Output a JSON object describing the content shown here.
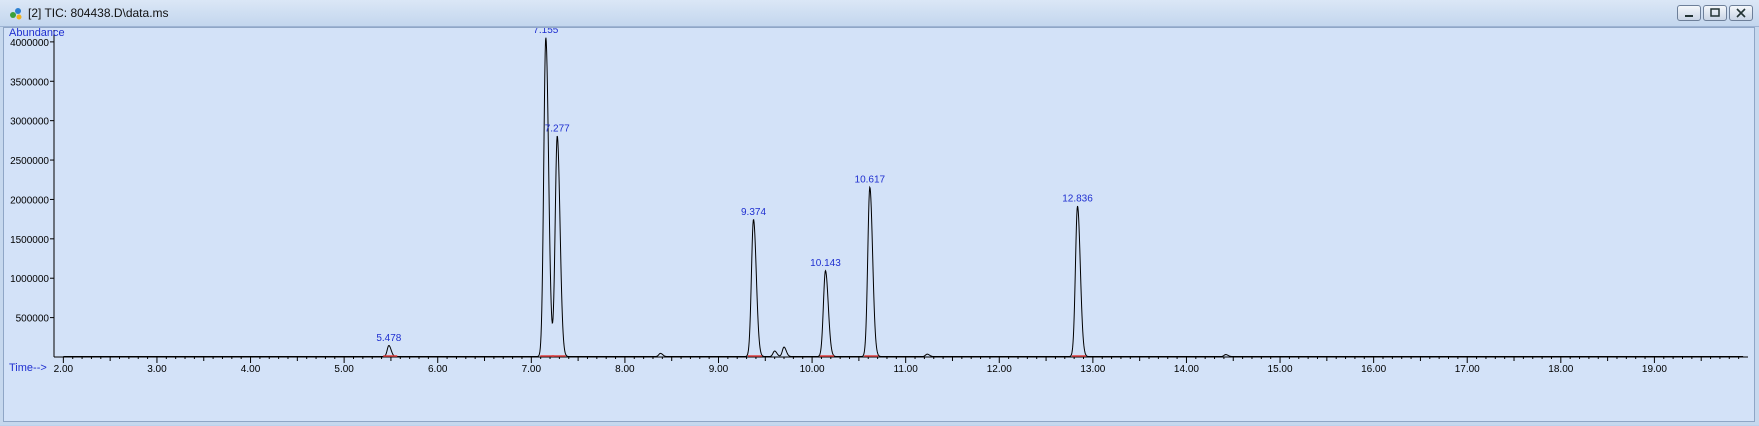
{
  "window": {
    "title": "[2] TIC: 804438.D\\data.ms",
    "icons": [
      "chromatogram-app-icon",
      "minimize-icon",
      "restore-icon",
      "close-icon"
    ]
  },
  "chart_data": {
    "type": "line",
    "title": "",
    "ylabel": "Abundance",
    "xlabel": "Time-->",
    "xlim": [
      1.9,
      20.0
    ],
    "ylim": [
      0,
      4100000
    ],
    "x_ticks": [
      "2.00",
      "3.00",
      "4.00",
      "5.00",
      "6.00",
      "7.00",
      "8.00",
      "9.00",
      "10.00",
      "11.00",
      "12.00",
      "13.00",
      "14.00",
      "15.00",
      "16.00",
      "17.00",
      "18.00",
      "19.00"
    ],
    "y_ticks": [
      "500000",
      "1000000",
      "1500000",
      "2000000",
      "2500000",
      "3000000",
      "3500000",
      "4000000"
    ],
    "grid": false,
    "peaks": [
      {
        "rt": 5.478,
        "label": "5.478",
        "abundance": 140000
      },
      {
        "rt": 7.155,
        "label": "7.155",
        "abundance": 4050000
      },
      {
        "rt": 7.277,
        "label": "7.277",
        "abundance": 2800000
      },
      {
        "rt": 9.374,
        "label": "9.374",
        "abundance": 1740000
      },
      {
        "rt": 10.143,
        "label": "10.143",
        "abundance": 1090000
      },
      {
        "rt": 10.617,
        "label": "10.617",
        "abundance": 2150000
      },
      {
        "rt": 12.836,
        "label": "12.836",
        "abundance": 1910000
      }
    ],
    "minor_peaks": [
      {
        "rt": 8.38,
        "abundance": 40000
      },
      {
        "rt": 9.6,
        "abundance": 70000
      },
      {
        "rt": 9.7,
        "abundance": 120000
      },
      {
        "rt": 11.23,
        "abundance": 30000
      },
      {
        "rt": 14.42,
        "abundance": 25000
      }
    ],
    "colors": {
      "trace": "#000000",
      "peak_label": "#1f2fd0",
      "axis_title": "#1f2fd0",
      "baseline_marker": "#e04040"
    }
  }
}
